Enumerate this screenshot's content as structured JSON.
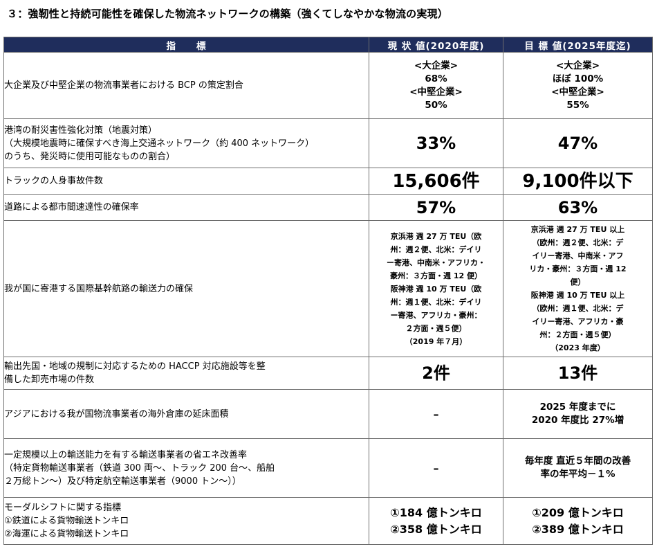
{
  "title": "３：強靭性と持続可能性を確保した物流ネットワークの構築（強くてしなやかな物流の実現）",
  "headers": {
    "indicator": "指　　標",
    "current": "現 状 値(2020年度)",
    "target": "目 標 値(2025年度迄)"
  },
  "rows": [
    {
      "indicator": [
        "大企業及び中堅企業の物流事業者における BCP の策定割合"
      ],
      "current": [
        "<大企業>",
        "68%",
        "<中堅企業>",
        "50%"
      ],
      "target": [
        "<大企業>",
        "ほぼ 100%",
        "<中堅企業>",
        "55%"
      ]
    },
    {
      "indicator": [
        "港湾の耐災害性強化対策（地震対策）",
        "（大規模地震時に確保すべき海上交通ネットワーク（約 400 ネットワーク）",
        "のうち、発災時に使用可能なものの割合）"
      ],
      "current": [
        "33%"
      ],
      "target": [
        "47%"
      ]
    },
    {
      "indicator": [
        "トラックの人身事故件数"
      ],
      "current": [
        "15,606件"
      ],
      "target": [
        "9,100件以下"
      ]
    },
    {
      "indicator": [
        "道路による都市間速達性の確保率"
      ],
      "current": [
        "57%"
      ],
      "target": [
        "63%"
      ]
    },
    {
      "indicator": [
        "我が国に寄港する国際基幹航路の輸送力の確保"
      ],
      "current": [
        "京浜港 週 27 万 TEU（欧",
        "州：週２便、北米：デイリ",
        "ー寄港、中南米・アフリカ・",
        "豪州：３方面・週 12 便）",
        "阪神港 週 10 万 TEU（欧",
        "州：週１便、北米：デイリ",
        "ー寄港、アフリカ・豪州：",
        "２方面・週５便）",
        "（2019 年７月）"
      ],
      "target": [
        "京浜港 週 27 万 TEU 以上",
        "（欧州：週２便、北米：デ",
        "イリー寄港、中南米・アフ",
        "リカ・豪州：３方面・週 12",
        "便）",
        "阪神港 週 10 万 TEU 以上",
        "（欧州：週１便、北米：デ",
        "イリー寄港、アフリカ・豪",
        "州：２方面・週５便）",
        "（2023 年度）"
      ]
    },
    {
      "indicator": [
        "輸出先国・地域の規制に対応するための HACCP 対応施設等を整",
        "備した卸売市場の件数"
      ],
      "current": [
        "2件"
      ],
      "target": [
        "13件"
      ]
    },
    {
      "indicator": [
        "アジアにおける我が国物流事業者の海外倉庫の延床面積"
      ],
      "current": [
        "–"
      ],
      "target": [
        "2025 年度までに",
        "2020 年度比 27%増"
      ]
    },
    {
      "indicator": [
        "一定規模以上の輸送能力を有する輸送事業者の省エネ改善率",
        "（特定貨物輸送事業者（鉄道 300 両～、トラック 200 台～、船舶",
        "２万総トン～）及び特定航空輸送事業者（9000 トン～））"
      ],
      "current": [
        "–"
      ],
      "target": [
        "毎年度 直近５年間の改善",
        "率の年平均－１%"
      ]
    },
    {
      "indicator": [
        "モーダルシフトに関する指標",
        "①鉄道による貨物輸送トンキロ",
        "②海運による貨物輸送トンキロ"
      ],
      "current": [
        "①184 億トンキロ",
        "②358 億トンキロ"
      ],
      "target": [
        "①209 億トンキロ",
        "②389 億トンキロ"
      ]
    }
  ]
}
